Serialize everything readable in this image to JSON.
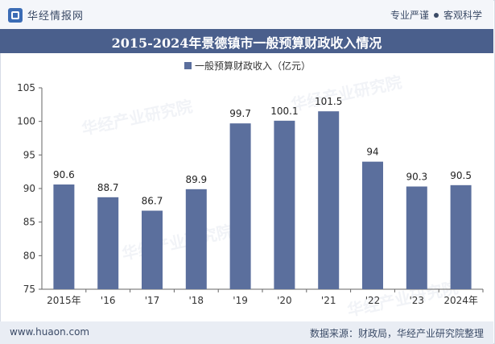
{
  "header": {
    "brand_name": "华经情报网",
    "slogan_left": "专业严谨",
    "slogan_right": "客观科学",
    "brand_color": "#3b6cb5"
  },
  "chart_data": {
    "type": "bar",
    "title": "2015-2024年景德镇市一般预算财政收入情况",
    "categories": [
      "2015年",
      "'16",
      "'17",
      "'18",
      "'19",
      "'20",
      "'21",
      "'22",
      "'23",
      "2024年"
    ],
    "series": [
      {
        "name": "一般预算财政收入（亿元）",
        "values": [
          90.6,
          88.7,
          86.7,
          89.9,
          99.7,
          100.1,
          101.5,
          94,
          90.3,
          90.5
        ],
        "labels": [
          "90.6",
          "88.7",
          "86.7",
          "89.9",
          "99.7",
          "100.1",
          "101.5",
          "94",
          "90.3",
          "90.5"
        ],
        "color": "#5b6f9d"
      }
    ],
    "yticks": [
      "75",
      "80",
      "85",
      "90",
      "95",
      "100",
      "105"
    ],
    "ylim": [
      75,
      105
    ],
    "grid": false,
    "legend_position": "top"
  },
  "footer": {
    "site": "www.huaon.com",
    "source": "数据来源：财政局，华经产业研究院整理"
  },
  "watermark": "华经产业研究院"
}
